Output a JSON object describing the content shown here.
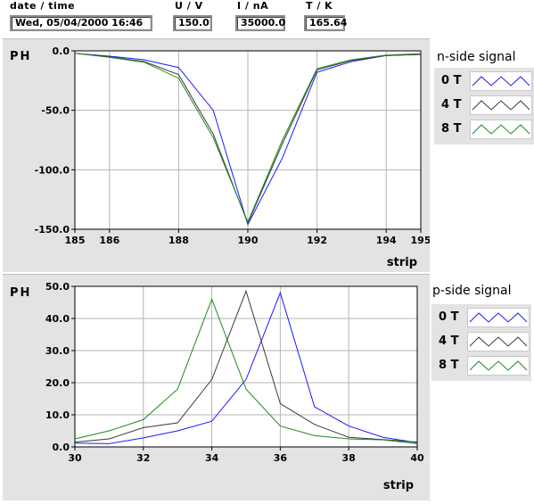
{
  "header": {
    "datetime": {
      "label": "date / time",
      "value": "Wed, 05/04/2000  16:46"
    },
    "voltage": {
      "label": "U / V",
      "value": "150.0"
    },
    "current": {
      "label": "I / nA",
      "value": "35000.0"
    },
    "temperature": {
      "label": "T / K",
      "value": "165.64"
    }
  },
  "colors": {
    "0T": "#1a1aff",
    "4T": "#3a3a3a",
    "8T": "#1e8a1e"
  },
  "legends": [
    {
      "title": "n-side signal",
      "items": [
        {
          "label": "0 T",
          "color_key": "0T"
        },
        {
          "label": "4 T",
          "color_key": "4T"
        },
        {
          "label": "8 T",
          "color_key": "8T"
        }
      ]
    },
    {
      "title": "p-side signal",
      "items": [
        {
          "label": "0 T",
          "color_key": "0T"
        },
        {
          "label": "4 T",
          "color_key": "4T"
        },
        {
          "label": "8 T",
          "color_key": "8T"
        }
      ]
    }
  ],
  "chart_data": [
    {
      "type": "line",
      "ylabel": "PH",
      "xlabel": "strip",
      "xlim": [
        185,
        195
      ],
      "ylim": [
        -150,
        0
      ],
      "xticks": [
        185,
        186,
        188,
        190,
        192,
        194,
        195
      ],
      "xtick_labels": [
        "185",
        "186",
        "188",
        "190",
        "192",
        "194",
        "195"
      ],
      "xgrid": [
        186,
        188,
        190,
        192,
        194
      ],
      "yticks": [
        0,
        -50,
        -100,
        -150
      ],
      "ytick_labels": [
        "0.0",
        "-50.0",
        "-100.0",
        "-150.0"
      ],
      "ygrid": [
        -50,
        -100
      ],
      "grid": true,
      "x": [
        185,
        186,
        187,
        188,
        189,
        190,
        191,
        192,
        193,
        194,
        195
      ],
      "series": [
        {
          "name": "0 T",
          "color_key": "0T",
          "values": [
            -2,
            -4.5,
            -7.5,
            -14,
            -50,
            -146,
            -90,
            -18,
            -9,
            -4,
            -3
          ]
        },
        {
          "name": "4 T",
          "color_key": "4T",
          "values": [
            -2,
            -5,
            -9,
            -20,
            -70,
            -145,
            -78,
            -16,
            -8,
            -4,
            -3
          ]
        },
        {
          "name": "8 T",
          "color_key": "8T",
          "values": [
            -2,
            -5.5,
            -9.5,
            -23,
            -73,
            -144,
            -75,
            -15,
            -7.5,
            -3.5,
            -2.5
          ]
        }
      ]
    },
    {
      "type": "line",
      "ylabel": "PH",
      "xlabel": "strip",
      "xlim": [
        30,
        40
      ],
      "ylim": [
        0,
        50
      ],
      "xticks": [
        30,
        32,
        34,
        36,
        38,
        40
      ],
      "xtick_labels": [
        "30",
        "32",
        "34",
        "36",
        "38",
        "40"
      ],
      "xgrid": [
        32,
        34,
        36,
        38
      ],
      "yticks": [
        0,
        10,
        20,
        30,
        40,
        50
      ],
      "ytick_labels": [
        "0.0",
        "10.0",
        "20.0",
        "30.0",
        "40.0",
        "50.0"
      ],
      "ygrid": [
        10,
        20,
        30,
        40
      ],
      "grid": true,
      "x": [
        30,
        31,
        32,
        33,
        34,
        35,
        36,
        37,
        38,
        39,
        40
      ],
      "series": [
        {
          "name": "0 T",
          "color_key": "0T",
          "values": [
            1.2,
            1,
            2.8,
            5,
            8,
            21,
            48,
            12.5,
            6.5,
            3,
            1.3
          ]
        },
        {
          "name": "4 T",
          "color_key": "4T",
          "values": [
            1.5,
            2.5,
            6,
            7.5,
            21,
            48.5,
            13.5,
            7,
            3,
            2.3,
            1.5
          ]
        },
        {
          "name": "8 T",
          "color_key": "8T",
          "values": [
            2.5,
            5,
            8.5,
            18,
            46,
            18,
            6.5,
            3.5,
            2.5,
            2.2,
            1
          ]
        }
      ]
    }
  ]
}
